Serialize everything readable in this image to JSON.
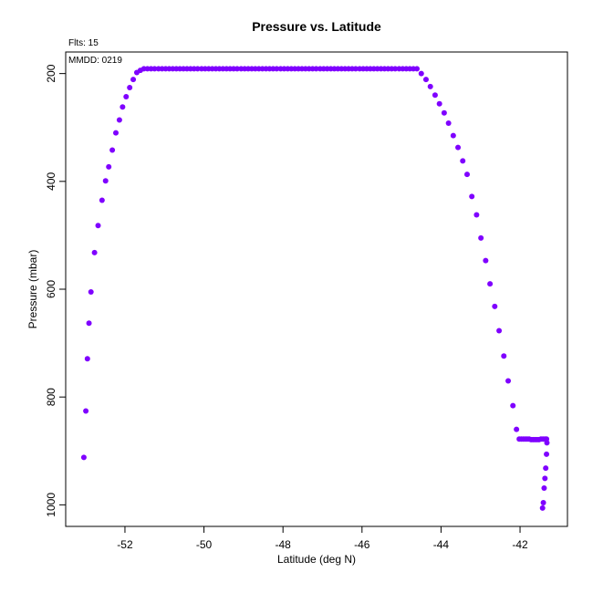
{
  "chart_data": {
    "type": "scatter",
    "title": "Pressure vs. Latitude",
    "annotations": {
      "flts": "Flts: 15",
      "mmdd": "MMDD: 0219"
    },
    "xlabel": "Latitude (deg N)",
    "ylabel": "Pressure (mbar)",
    "xlim": [
      -53.5,
      -40.8
    ],
    "ylim": [
      1040,
      160
    ],
    "y_reversed": true,
    "xticks": [
      -52,
      -50,
      -48,
      -46,
      -44,
      -42
    ],
    "xtick_labels": [
      "-52",
      "-50",
      "-48",
      "-46",
      "-44",
      "-42"
    ],
    "yticks": [
      200,
      400,
      600,
      800,
      1000
    ],
    "ytick_labels": [
      "200",
      "400",
      "600",
      "800",
      "1000"
    ],
    "grid": false,
    "legend": "none",
    "color": "#7f00ff",
    "series": [
      {
        "x": [
          -53.04,
          -52.99,
          -52.95,
          -52.91,
          -52.86,
          -52.77,
          -52.68,
          -52.58,
          -52.49,
          -52.41,
          -52.32,
          -52.23,
          -52.14,
          -52.06,
          -51.97,
          -51.88,
          -51.79,
          -51.7,
          -51.61,
          -51.52,
          -51.43,
          -51.34,
          -51.25,
          -51.15,
          -51.06,
          -50.97,
          -50.88,
          -50.79,
          -50.7,
          -50.61,
          -50.52,
          -50.43,
          -50.34,
          -50.25,
          -50.16,
          -50.06,
          -49.97,
          -49.88,
          -49.79,
          -49.7,
          -49.61,
          -49.52,
          -49.43,
          -49.34,
          -49.25,
          -49.16,
          -49.06,
          -48.97,
          -48.88,
          -48.79,
          -48.7,
          -48.61,
          -48.52,
          -48.43,
          -48.34,
          -48.25,
          -48.16,
          -48.06,
          -47.97,
          -47.88,
          -47.79,
          -47.7,
          -47.61,
          -47.52,
          -47.43,
          -47.34,
          -47.25,
          -47.16,
          -47.06,
          -46.97,
          -46.88,
          -46.79,
          -46.7,
          -46.61,
          -46.52,
          -46.43,
          -46.34,
          -46.25,
          -46.16,
          -46.06,
          -45.97,
          -45.88,
          -45.79,
          -45.7,
          -45.61,
          -45.52,
          -45.43,
          -45.34,
          -45.25,
          -45.16,
          -45.06,
          -44.97,
          -44.88,
          -44.79,
          -44.7,
          -44.61,
          -44.5,
          -44.38,
          -44.27,
          -44.15,
          -44.04,
          -43.92,
          -43.81,
          -43.69,
          -43.57,
          -43.45,
          -43.34,
          -43.22,
          -43.1,
          -42.99,
          -42.87,
          -42.76,
          -42.64,
          -42.53,
          -42.41,
          -42.3,
          -42.18,
          -42.09,
          -42.02,
          -41.97,
          -41.92,
          -41.87,
          -41.82,
          -41.77,
          -41.72,
          -41.67,
          -41.62,
          -41.57,
          -41.52,
          -41.47,
          -41.42,
          -41.37,
          -41.33,
          -41.32,
          -41.33,
          -41.35,
          -41.37,
          -41.39,
          -41.41,
          -41.43
        ],
        "y": [
          912,
          826,
          729,
          663,
          605,
          532,
          482,
          435,
          399,
          373,
          342,
          310,
          286,
          262,
          243,
          226,
          211,
          198,
          194,
          191,
          191,
          191,
          191,
          191,
          191,
          191,
          191,
          191,
          191,
          191,
          191,
          191,
          191,
          191,
          191,
          191,
          191,
          191,
          191,
          191,
          191,
          191,
          191,
          191,
          191,
          191,
          191,
          191,
          191,
          191,
          191,
          191,
          191,
          191,
          191,
          191,
          191,
          191,
          191,
          191,
          191,
          191,
          191,
          191,
          191,
          191,
          191,
          191,
          191,
          191,
          191,
          191,
          191,
          191,
          191,
          191,
          191,
          191,
          191,
          191,
          191,
          191,
          191,
          191,
          191,
          191,
          191,
          191,
          191,
          191,
          191,
          191,
          191,
          191,
          191,
          191,
          200,
          211,
          224,
          240,
          256,
          273,
          292,
          315,
          337,
          362,
          387,
          428,
          462,
          505,
          547,
          590,
          632,
          677,
          724,
          770,
          816,
          860,
          878,
          878,
          878,
          878,
          878,
          878,
          879,
          879,
          879,
          879,
          879,
          878,
          878,
          878,
          878,
          885,
          906,
          932,
          951,
          969,
          996,
          1006
        ]
      }
    ]
  }
}
